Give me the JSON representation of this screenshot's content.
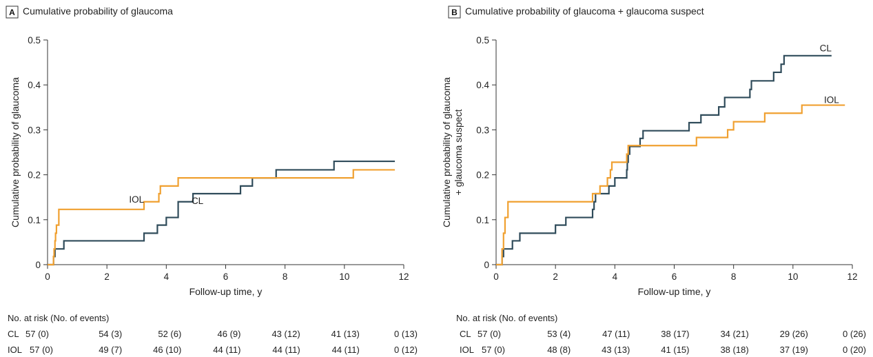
{
  "colors": {
    "CL": "#2f4b5a",
    "IOL": "#f0a030"
  },
  "chart_data": [
    {
      "type": "line",
      "panel": "A",
      "title": "Cumulative probability of glaucoma",
      "xlabel": "Follow-up time, y",
      "ylabel_lines": [
        "Cumulative probability of glaucoma"
      ],
      "xlim": [
        0,
        12
      ],
      "ylim": [
        0,
        0.5
      ],
      "xticks": [
        0,
        2,
        4,
        6,
        8,
        10,
        12
      ],
      "yticks": [
        0,
        0.1,
        0.2,
        0.3,
        0.4,
        0.5
      ],
      "ytick_labels": [
        "0",
        "0.1",
        "0.2",
        "0.3",
        "0.4",
        "0.5"
      ],
      "series": [
        {
          "name": "CL",
          "label_pos": [
            5.05,
            0.135
          ],
          "points": [
            [
              0,
              0
            ],
            [
              0.2,
              0
            ],
            [
              0.2,
              0.018
            ],
            [
              0.25,
              0.018
            ],
            [
              0.25,
              0.035
            ],
            [
              0.55,
              0.035
            ],
            [
              0.55,
              0.053
            ],
            [
              3.25,
              0.053
            ],
            [
              3.25,
              0.07
            ],
            [
              3.7,
              0.07
            ],
            [
              3.7,
              0.088
            ],
            [
              4.0,
              0.088
            ],
            [
              4.0,
              0.105
            ],
            [
              4.4,
              0.105
            ],
            [
              4.4,
              0.14
            ],
            [
              4.9,
              0.14
            ],
            [
              4.9,
              0.158
            ],
            [
              6.5,
              0.158
            ],
            [
              6.5,
              0.175
            ],
            [
              6.9,
              0.175
            ],
            [
              6.9,
              0.193
            ],
            [
              7.7,
              0.193
            ],
            [
              7.7,
              0.211
            ],
            [
              9.65,
              0.211
            ],
            [
              9.65,
              0.23
            ],
            [
              11.7,
              0.23
            ]
          ]
        },
        {
          "name": "IOL",
          "label_pos": [
            3.0,
            0.138
          ],
          "points": [
            [
              0,
              0
            ],
            [
              0.2,
              0
            ],
            [
              0.2,
              0.018
            ],
            [
              0.22,
              0.018
            ],
            [
              0.22,
              0.035
            ],
            [
              0.25,
              0.035
            ],
            [
              0.25,
              0.053
            ],
            [
              0.27,
              0.053
            ],
            [
              0.27,
              0.07
            ],
            [
              0.3,
              0.07
            ],
            [
              0.3,
              0.088
            ],
            [
              0.38,
              0.088
            ],
            [
              0.38,
              0.123
            ],
            [
              3.25,
              0.123
            ],
            [
              3.25,
              0.14
            ],
            [
              3.75,
              0.14
            ],
            [
              3.75,
              0.158
            ],
            [
              3.8,
              0.158
            ],
            [
              3.8,
              0.175
            ],
            [
              4.4,
              0.175
            ],
            [
              4.4,
              0.193
            ],
            [
              10.3,
              0.193
            ],
            [
              10.3,
              0.211
            ],
            [
              11.7,
              0.211
            ]
          ]
        }
      ],
      "risk_table": {
        "heading": "No. at risk (No. of events)",
        "rows": [
          {
            "label": "CL",
            "values": [
              "57 (0)",
              "54 (3)",
              "52 (6)",
              "46 (9)",
              "43 (12)",
              "41 (13)",
              "0 (13)"
            ]
          },
          {
            "label": "IOL",
            "values": [
              "57 (0)",
              "49 (7)",
              "46 (10)",
              "44 (11)",
              "44 (11)",
              "44 (11)",
              "0 (12)"
            ]
          }
        ]
      }
    },
    {
      "type": "line",
      "panel": "B",
      "title": "Cumulative probability of glaucoma + glaucoma suspect",
      "xlabel": "Follow-up time, y",
      "ylabel_lines": [
        "Cumulative probability of glaucoma",
        "+ glaucoma suspect"
      ],
      "xlim": [
        0,
        12
      ],
      "ylim": [
        0,
        0.5
      ],
      "xticks": [
        0,
        2,
        4,
        6,
        8,
        10,
        12
      ],
      "yticks": [
        0,
        0.1,
        0.2,
        0.3,
        0.4,
        0.5
      ],
      "ytick_labels": [
        "0",
        "0.1",
        "0.2",
        "0.3",
        "0.4",
        "0.5"
      ],
      "series": [
        {
          "name": "CL",
          "label_pos": [
            11.1,
            0.475
          ],
          "points": [
            [
              0,
              0
            ],
            [
              0.2,
              0
            ],
            [
              0.2,
              0.018
            ],
            [
              0.25,
              0.018
            ],
            [
              0.25,
              0.035
            ],
            [
              0.55,
              0.035
            ],
            [
              0.55,
              0.053
            ],
            [
              0.8,
              0.053
            ],
            [
              0.8,
              0.07
            ],
            [
              2.0,
              0.07
            ],
            [
              2.0,
              0.088
            ],
            [
              2.35,
              0.088
            ],
            [
              2.35,
              0.105
            ],
            [
              3.25,
              0.105
            ],
            [
              3.25,
              0.123
            ],
            [
              3.3,
              0.123
            ],
            [
              3.3,
              0.14
            ],
            [
              3.35,
              0.14
            ],
            [
              3.35,
              0.158
            ],
            [
              3.8,
              0.158
            ],
            [
              3.8,
              0.175
            ],
            [
              4.0,
              0.175
            ],
            [
              4.0,
              0.193
            ],
            [
              4.4,
              0.193
            ],
            [
              4.4,
              0.211
            ],
            [
              4.42,
              0.211
            ],
            [
              4.42,
              0.228
            ],
            [
              4.45,
              0.228
            ],
            [
              4.45,
              0.246
            ],
            [
              4.5,
              0.246
            ],
            [
              4.5,
              0.263
            ],
            [
              4.85,
              0.263
            ],
            [
              4.85,
              0.281
            ],
            [
              4.95,
              0.281
            ],
            [
              4.95,
              0.298
            ],
            [
              6.5,
              0.298
            ],
            [
              6.5,
              0.316
            ],
            [
              6.9,
              0.316
            ],
            [
              6.9,
              0.333
            ],
            [
              7.5,
              0.333
            ],
            [
              7.5,
              0.351
            ],
            [
              7.7,
              0.351
            ],
            [
              7.7,
              0.372
            ],
            [
              8.55,
              0.372
            ],
            [
              8.55,
              0.39
            ],
            [
              8.6,
              0.39
            ],
            [
              8.6,
              0.409
            ],
            [
              9.35,
              0.409
            ],
            [
              9.35,
              0.428
            ],
            [
              9.6,
              0.428
            ],
            [
              9.6,
              0.446
            ],
            [
              9.7,
              0.446
            ],
            [
              9.7,
              0.465
            ],
            [
              11.3,
              0.465
            ]
          ]
        },
        {
          "name": "IOL",
          "label_pos": [
            11.3,
            0.36
          ],
          "points": [
            [
              0,
              0
            ],
            [
              0.2,
              0
            ],
            [
              0.2,
              0.035
            ],
            [
              0.25,
              0.035
            ],
            [
              0.25,
              0.07
            ],
            [
              0.3,
              0.07
            ],
            [
              0.3,
              0.105
            ],
            [
              0.4,
              0.105
            ],
            [
              0.4,
              0.14
            ],
            [
              3.25,
              0.14
            ],
            [
              3.25,
              0.158
            ],
            [
              3.5,
              0.158
            ],
            [
              3.5,
              0.175
            ],
            [
              3.75,
              0.175
            ],
            [
              3.75,
              0.193
            ],
            [
              3.85,
              0.193
            ],
            [
              3.85,
              0.211
            ],
            [
              3.9,
              0.211
            ],
            [
              3.9,
              0.228
            ],
            [
              4.4,
              0.228
            ],
            [
              4.4,
              0.246
            ],
            [
              4.45,
              0.246
            ],
            [
              4.45,
              0.265
            ],
            [
              6.75,
              0.265
            ],
            [
              6.75,
              0.283
            ],
            [
              7.8,
              0.283
            ],
            [
              7.8,
              0.3
            ],
            [
              8.0,
              0.3
            ],
            [
              8.0,
              0.318
            ],
            [
              9.05,
              0.318
            ],
            [
              9.05,
              0.337
            ],
            [
              10.3,
              0.337
            ],
            [
              10.3,
              0.355
            ],
            [
              11.75,
              0.355
            ]
          ]
        }
      ],
      "risk_table": {
        "heading": "No. at risk (No. of events)",
        "rows": [
          {
            "label": "CL",
            "values": [
              "57 (0)",
              "53 (4)",
              "47 (11)",
              "38 (17)",
              "34 (21)",
              "29 (26)",
              "0 (26)"
            ]
          },
          {
            "label": "IOL",
            "values": [
              "57 (0)",
              "48 (8)",
              "43 (13)",
              "41 (15)",
              "38 (18)",
              "37 (19)",
              "0 (20)"
            ]
          }
        ]
      }
    }
  ]
}
